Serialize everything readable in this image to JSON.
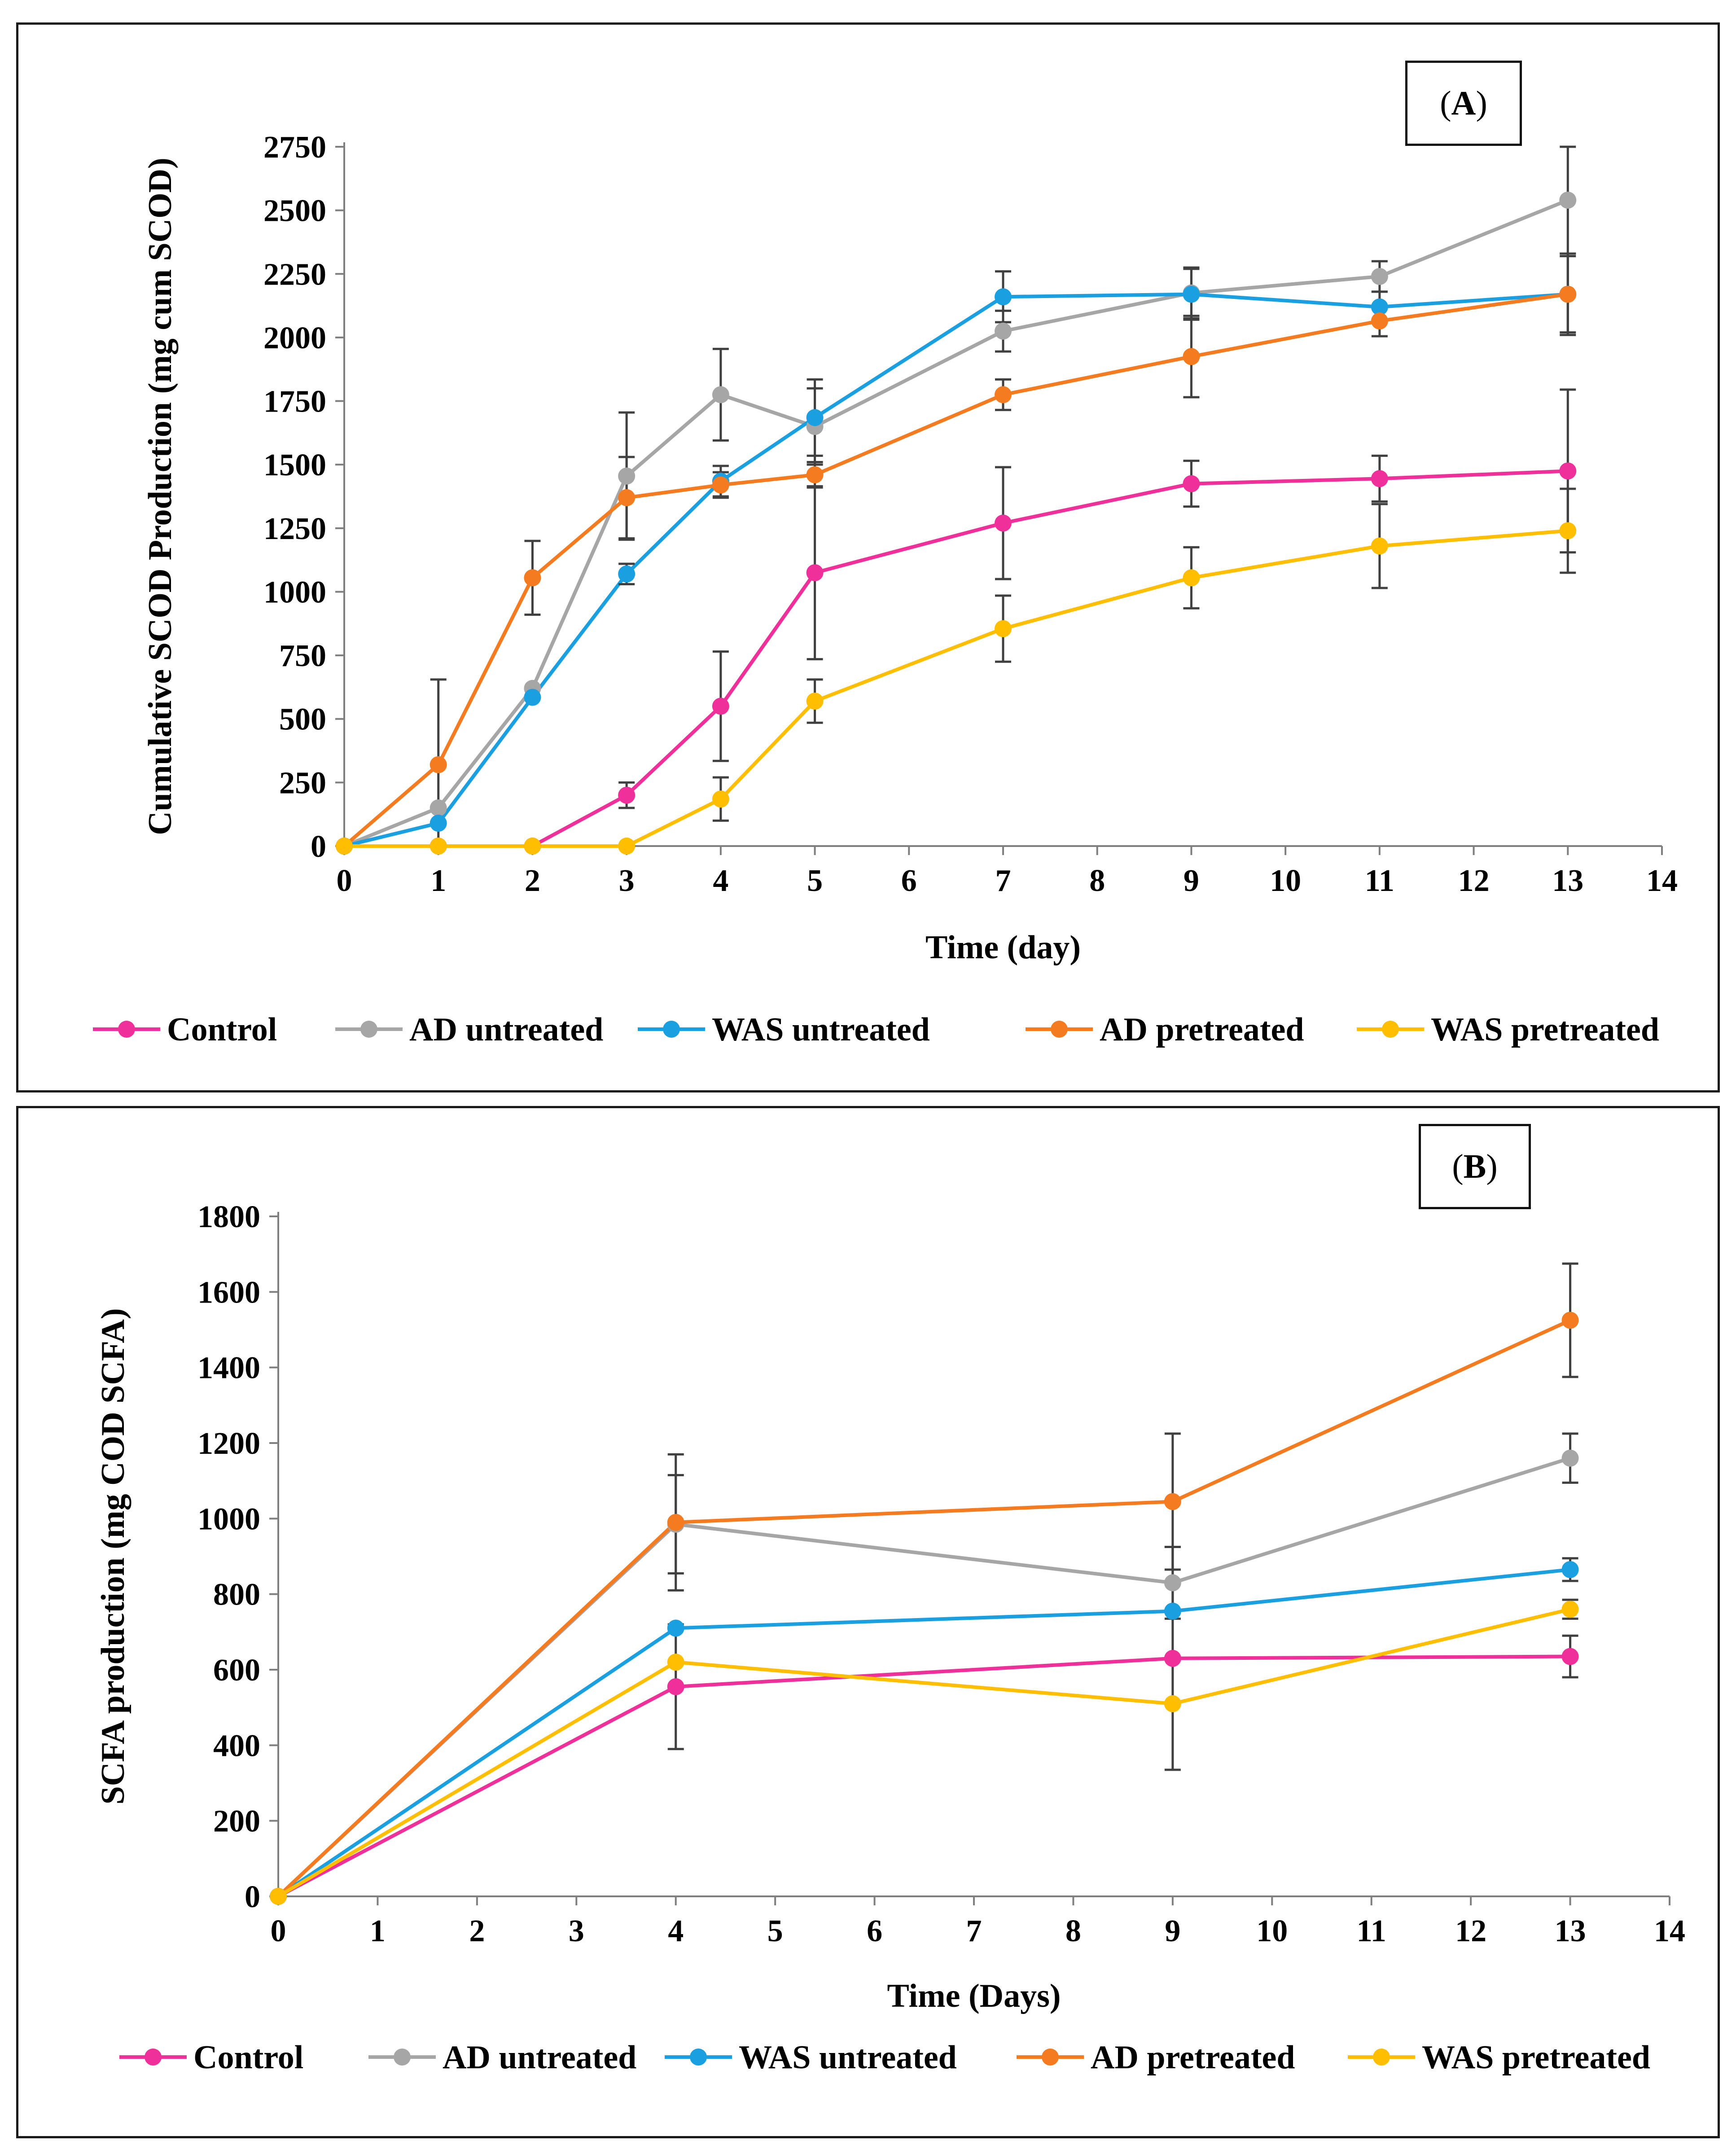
{
  "chart_data": [
    {
      "panel_label": "A",
      "type": "line",
      "title": "",
      "xlabel": "Time (day)",
      "ylabel": "Cumulative SCOD Production (mg cum SCOD)",
      "xlim": [
        0,
        14
      ],
      "ylim": [
        0,
        2750
      ],
      "x_ticks": [
        "0",
        "1",
        "2",
        "3",
        "4",
        "5",
        "6",
        "7",
        "8",
        "9",
        "10",
        "11",
        "12",
        "13",
        "14"
      ],
      "y_ticks": [
        "0",
        "250",
        "500",
        "750",
        "1000",
        "1250",
        "1500",
        "1750",
        "2000",
        "2250",
        "2500",
        "2750"
      ],
      "grid": false,
      "legend_position": "bottom",
      "x": [
        0,
        1,
        2,
        3,
        4,
        5,
        7,
        9,
        11,
        13
      ],
      "series": [
        {
          "name": "Control",
          "color": "#f0309a",
          "values": [
            0,
            0,
            0,
            200,
            550,
            1075,
            1270,
            1425,
            1445,
            1475
          ],
          "errors": [
            0,
            0,
            0,
            50,
            215,
            340,
            220,
            90,
            90,
            320
          ]
        },
        {
          "name": "AD untreated",
          "color": "#a6a6a6",
          "values": [
            0,
            150,
            620,
            1455,
            1775,
            1650,
            2025,
            2175,
            2240,
            2540
          ],
          "errors": [
            0,
            0,
            0,
            250,
            180,
            150,
            80,
            100,
            60,
            210
          ]
        },
        {
          "name": "WAS untreated",
          "color": "#1a9fe0",
          "values": [
            0,
            90,
            585,
            1070,
            1435,
            1685,
            2160,
            2170,
            2120,
            2170
          ],
          "errors": [
            0,
            0,
            0,
            40,
            60,
            150,
            100,
            100,
            60,
            150
          ]
        },
        {
          "name": "AD pretreated",
          "color": "#f47b20",
          "values": [
            0,
            320,
            1055,
            1370,
            1420,
            1460,
            1775,
            1925,
            2065,
            2170
          ],
          "errors": [
            0,
            335,
            145,
            160,
            50,
            50,
            60,
            160,
            60,
            160
          ]
        },
        {
          "name": "WAS pretreated",
          "color": "#ffbf00",
          "values": [
            0,
            0,
            0,
            0,
            185,
            570,
            855,
            1055,
            1180,
            1240
          ],
          "errors": [
            0,
            0,
            0,
            0,
            85,
            85,
            130,
            120,
            165,
            165
          ]
        }
      ]
    },
    {
      "panel_label": "B",
      "type": "line",
      "title": "",
      "xlabel": "Time (Days)",
      "ylabel": "SCFA production (mg COD SCFA)",
      "xlim": [
        0,
        14
      ],
      "ylim": [
        0,
        1800
      ],
      "x_ticks": [
        "0",
        "1",
        "2",
        "3",
        "4",
        "5",
        "6",
        "7",
        "8",
        "9",
        "10",
        "11",
        "12",
        "13",
        "14"
      ],
      "y_ticks": [
        "0",
        "200",
        "400",
        "600",
        "800",
        "1000",
        "1200",
        "1400",
        "1600",
        "1800"
      ],
      "grid": false,
      "legend_position": "bottom",
      "x": [
        0,
        4,
        9,
        13
      ],
      "series": [
        {
          "name": "Control",
          "color": "#f0309a",
          "values": [
            0,
            555,
            630,
            635
          ],
          "errors": [
            0,
            165,
            295,
            55
          ]
        },
        {
          "name": "AD untreated",
          "color": "#a6a6a6",
          "values": [
            0,
            985,
            830,
            1160
          ],
          "errors": [
            0,
            130,
            95,
            65
          ]
        },
        {
          "name": "WAS untreated",
          "color": "#1a9fe0",
          "values": [
            0,
            710,
            755,
            865
          ],
          "errors": [
            0,
            0,
            0,
            30
          ]
        },
        {
          "name": "AD pretreated",
          "color": "#f47b20",
          "values": [
            0,
            990,
            1045,
            1525
          ],
          "errors": [
            0,
            180,
            180,
            150
          ]
        },
        {
          "name": "WAS pretreated",
          "color": "#ffbf00",
          "values": [
            0,
            620,
            510,
            760
          ],
          "errors": [
            0,
            0,
            0,
            25
          ]
        }
      ]
    }
  ]
}
